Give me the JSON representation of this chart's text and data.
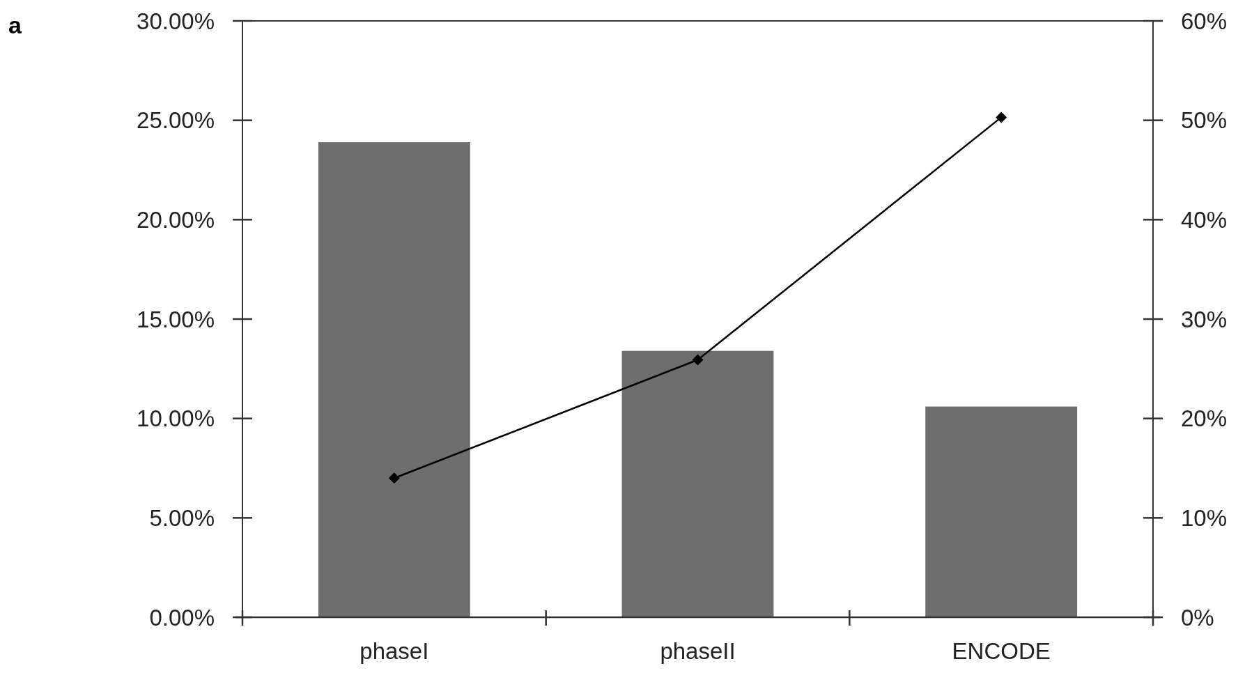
{
  "chart_data": {
    "type": "bar",
    "categories": [
      "phaseI",
      "phaseII",
      "ENCODE"
    ],
    "series": [
      {
        "color": "#6e6e6e",
        "values": [
          23.9,
          13.4,
          10.6
        ]
      },
      {
        "type": "line",
        "axis": "y2",
        "color": "#000000",
        "marker": "diamond",
        "values": [
          14,
          25.9,
          50.3
        ]
      }
    ],
    "ylim": [
      0,
      30
    ],
    "yticks": [
      {
        "value": 0,
        "label": "0.00%"
      },
      {
        "value": 5,
        "label": "5.00%"
      },
      {
        "value": 10,
        "label": "10.00%"
      },
      {
        "value": 15,
        "label": "15.00%"
      },
      {
        "value": 20,
        "label": "20.00%"
      },
      {
        "value": 25,
        "label": "25.00%"
      },
      {
        "value": 30,
        "label": "30.00%"
      }
    ],
    "y2lim": [
      0,
      60
    ],
    "y2ticks": [
      {
        "value": 0,
        "label": "0%"
      },
      {
        "value": 10,
        "label": "10%"
      },
      {
        "value": 20,
        "label": "20%"
      },
      {
        "value": 30,
        "label": "30%"
      },
      {
        "value": 40,
        "label": "40%"
      },
      {
        "value": 50,
        "label": "50%"
      },
      {
        "value": 60,
        "label": "60%"
      }
    ],
    "annotations": [
      "a"
    ],
    "grid": false
  }
}
